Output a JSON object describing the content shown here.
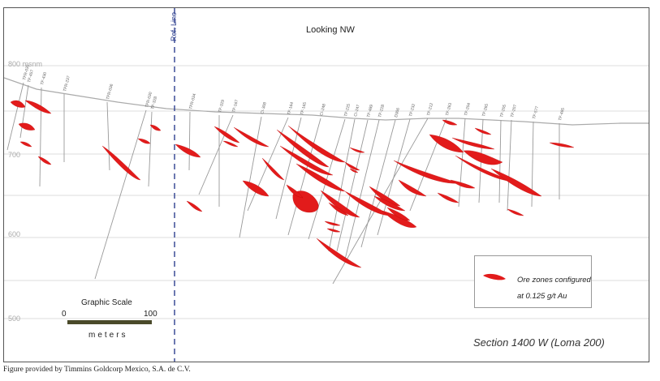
{
  "figure": {
    "view_label": "Looking NW",
    "reference_line_label": "Ref. Line",
    "elevation_unit": "msnm",
    "elevations": [
      {
        "label": "800",
        "row": 0
      },
      {
        "label": "700",
        "row": 2
      },
      {
        "label": "600",
        "row": 4
      },
      {
        "label": "500",
        "row": 6
      }
    ],
    "scale": {
      "title": "Graphic Scale",
      "start_label": "0",
      "end_label": "100",
      "unit_label": "meters",
      "bar_color": "#4a4a2a"
    },
    "legend": {
      "line1": "Ore zones configured",
      "line2": "at 0.125 g/t Au",
      "ore_color": "#e21b1b"
    },
    "section_title": "Section 1400 W  (Loma 200)",
    "credit": "Figure provided by Timmins Goldcorp Mexico, S.A. de C.V.",
    "drill_holes": [
      "TFR-035",
      "TF-457",
      "TF-430",
      "TFR-237",
      "TFR-036",
      "TFR-030",
      "TF-328",
      "TFR-034",
      "TF-329",
      "TF-167",
      "CI-308",
      "TF-164",
      "TF-165",
      "CI-248",
      "TF-225",
      "CI-247",
      "TF-489",
      "TF-228",
      "D306",
      "TF-232",
      "TF-212",
      "TF-263",
      "TF-204",
      "TF-265",
      "TF-205",
      "TF-207",
      "TF-577",
      "TF-495"
    ],
    "ore_zone_color": "#e21b1b",
    "line_color": "#999999",
    "grid_color": "#dddddd"
  }
}
